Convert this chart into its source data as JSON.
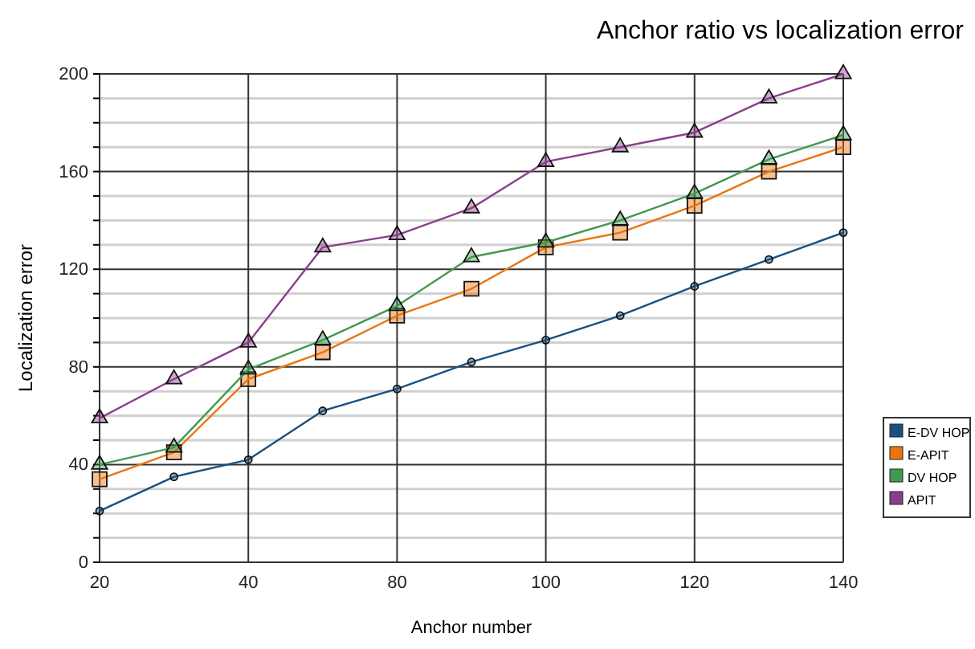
{
  "chart_data": {
    "type": "line",
    "title": "Anchor ratio vs localization error",
    "xlabel": "Anchor number",
    "ylabel": "Localization error",
    "categories": [
      "20",
      null,
      "40",
      null,
      "80",
      null,
      "100",
      null,
      "120",
      null,
      "140"
    ],
    "series": [
      {
        "name": "E-DV HOP",
        "color": "#1a5080",
        "marker": "circle",
        "values": [
          21,
          35,
          42,
          62,
          71,
          82,
          91,
          101,
          113,
          124,
          135
        ]
      },
      {
        "name": "E-APIT",
        "color": "#e87511",
        "marker": "square",
        "values": [
          34,
          45,
          75,
          86,
          101,
          112,
          129,
          135,
          146,
          160,
          170
        ]
      },
      {
        "name": "DV HOP",
        "color": "#3f9a4f",
        "marker": "triangle",
        "values": [
          40,
          47,
          79,
          91,
          105,
          125,
          131,
          140,
          151,
          165,
          175
        ]
      },
      {
        "name": "APIT",
        "color": "#8a3f8c",
        "marker": "triangle",
        "values": [
          59,
          75,
          90,
          129,
          134,
          145,
          164,
          170,
          176,
          190,
          200
        ]
      }
    ],
    "ylim": [
      0,
      200
    ],
    "yticks": [
      0,
      {
        "value": 10,
        "label": null
      },
      {
        "value": 20,
        "label": null
      },
      {
        "value": 30,
        "label": null
      },
      40,
      {
        "value": 50,
        "label": null
      },
      {
        "value": 60,
        "label": null
      },
      {
        "value": 70,
        "label": null
      },
      80,
      {
        "value": 90,
        "label": null
      },
      {
        "value": 100,
        "label": null
      },
      {
        "value": 110,
        "label": null
      },
      120,
      {
        "value": 130,
        "label": null
      },
      {
        "value": 140,
        "label": null
      },
      {
        "value": 150,
        "label": null
      },
      160,
      {
        "value": 170,
        "label": null
      },
      {
        "value": 180,
        "label": null
      },
      {
        "value": 190,
        "label": null
      },
      200
    ],
    "grid": true,
    "legend": "right",
    "line_style": "solid"
  }
}
